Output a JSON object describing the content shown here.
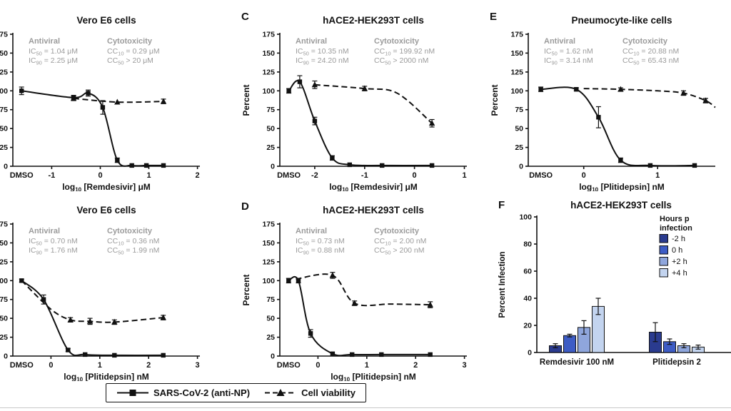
{
  "figure": {
    "bottom_legend": {
      "items": [
        {
          "label": "SARS-CoV-2 (anti-NP)",
          "marker": "square",
          "line": "solid"
        },
        {
          "label": "Cell viability",
          "marker": "triangle",
          "line": "dashed"
        }
      ]
    },
    "colors": {
      "curve": "#111111",
      "annotation_gray": "#9b9b9b",
      "bottom_rule": "#c9c9c9"
    }
  },
  "chart_data": [
    {
      "id": "panelA",
      "type": "line",
      "panel_label": "",
      "title": "Vero E6 cells",
      "xlabel": {
        "pre": "log",
        "sub": "10",
        "post": " [Remdesivir] μM"
      },
      "ylabel": "Percent",
      "ylim": [
        0,
        175
      ],
      "yticks": [
        0,
        25,
        50,
        75,
        100,
        125,
        150,
        175
      ],
      "xticks": [
        -1,
        0,
        1,
        2
      ],
      "xlim": [
        -1.8,
        2.05
      ],
      "dmso_x": -1.62,
      "dmso_label": "DMSO",
      "annotations": {
        "antiviral": {
          "header": "Antiviral",
          "lines": [
            {
              "pre": "IC",
              "sub": "50",
              "post": " = 1.04 μM"
            },
            {
              "pre": "IC",
              "sub": "90",
              "post": " = 2.25 μM"
            }
          ]
        },
        "cytotoxicity": {
          "header": "Cytotoxicity",
          "lines": [
            {
              "pre": "CC",
              "sub": "10",
              "post": " = 0.29 μM"
            },
            {
              "pre": "CC",
              "sub": "50",
              "post": " > 20 μM"
            }
          ]
        }
      },
      "series": [
        {
          "name": "SARS-CoV-2 (anti-NP)",
          "style": "solid",
          "marker": "square",
          "x": [
            -1.62,
            -0.55,
            -0.25,
            0.05,
            0.35,
            0.65,
            0.95,
            1.3
          ],
          "y": [
            100,
            91,
            97,
            78,
            8,
            1,
            1,
            1
          ],
          "err": [
            5,
            3,
            4,
            9,
            3,
            0,
            0,
            0
          ]
        },
        {
          "name": "Cell viability",
          "style": "dashed",
          "marker": "triangle",
          "x": [
            -0.55,
            0.35,
            1.3
          ],
          "y": [
            90,
            85,
            86
          ],
          "err": [
            3,
            0,
            3
          ]
        }
      ]
    },
    {
      "id": "panelC",
      "type": "line",
      "panel_label": "C",
      "title": "hACE2-HEK293T cells",
      "xlabel": {
        "pre": "log",
        "sub": "10",
        "post": " [Remdesivir] μM"
      },
      "ylabel": "Percent",
      "ylim": [
        0,
        175
      ],
      "yticks": [
        0,
        25,
        50,
        75,
        100,
        125,
        150,
        175
      ],
      "xticks": [
        -2,
        -1,
        0,
        1
      ],
      "xlim": [
        -2.7,
        1.05
      ],
      "dmso_x": -2.52,
      "dmso_label": "DMSO",
      "annotations": {
        "antiviral": {
          "header": "Antiviral",
          "lines": [
            {
              "pre": "IC",
              "sub": "50",
              "post": " = 10.35 nM"
            },
            {
              "pre": "IC",
              "sub": "90",
              "post": " = 24.20 nM"
            }
          ]
        },
        "cytotoxicity": {
          "header": "Cytotoxicity",
          "lines": [
            {
              "pre": "CC",
              "sub": "10",
              "post": " = 199.92 nM"
            },
            {
              "pre": "CC",
              "sub": "50",
              "post": " > 2000 nM"
            }
          ]
        }
      },
      "series": [
        {
          "name": "SARS-CoV-2 (anti-NP)",
          "style": "solid",
          "marker": "square",
          "x": [
            -2.52,
            -2.3,
            -2.0,
            -1.65,
            -1.3,
            -0.65,
            0.35
          ],
          "y": [
            100,
            112,
            60,
            11,
            2,
            1,
            1
          ],
          "err": [
            3,
            8,
            5,
            3,
            0,
            0,
            0
          ]
        },
        {
          "name": "Cell viability",
          "style": "dashed",
          "marker": "triangle",
          "x": [
            -2.0,
            -1.0,
            -0.35,
            0.35
          ],
          "y": [
            108,
            103,
            97,
            57
          ],
          "err": [
            5,
            3,
            0,
            5
          ],
          "m": [
            1,
            1,
            0,
            1
          ]
        }
      ]
    },
    {
      "id": "panelE",
      "type": "line",
      "panel_label": "E",
      "title": "Pneumocyte-like cells",
      "xlabel": {
        "pre": "log",
        "sub": "10",
        "post": " [Plitidepsin] nM"
      },
      "ylabel": "Percent",
      "ylim": [
        0,
        175
      ],
      "yticks": [
        0,
        25,
        50,
        75,
        100,
        125,
        150,
        175
      ],
      "xticks": [
        0,
        1
      ],
      "xlim": [
        -0.75,
        1.78
      ],
      "dmso_x": -0.58,
      "dmso_label": "DMSO",
      "annotations": {
        "antiviral": {
          "header": "Antiviral",
          "lines": [
            {
              "pre": "IC",
              "sub": "50",
              "post": " = 1.62 nM"
            },
            {
              "pre": "IC",
              "sub": "90",
              "post": " = 3.14 nM"
            }
          ]
        },
        "cytotoxicity": {
          "header": "Cytotoxicity",
          "lines": [
            {
              "pre": "CC",
              "sub": "10",
              "post": " = 20.88 nM"
            },
            {
              "pre": "CC",
              "sub": "50",
              "post": " = 65.43 nM"
            }
          ]
        }
      },
      "series": [
        {
          "name": "SARS-CoV-2 (anti-NP)",
          "style": "solid",
          "marker": "square",
          "x": [
            -0.58,
            -0.1,
            0.2,
            0.5,
            0.9,
            1.5
          ],
          "y": [
            102,
            102,
            65,
            8,
            1,
            1
          ],
          "err": [
            3,
            2,
            14,
            3,
            0,
            0
          ]
        },
        {
          "name": "Cell viability",
          "style": "dashed",
          "marker": "triangle",
          "x": [
            0.0,
            0.5,
            1.0,
            1.35,
            1.65,
            1.78
          ],
          "y": [
            103,
            102,
            100,
            97,
            87,
            78
          ],
          "err": [
            0,
            2,
            0,
            3,
            3,
            0
          ],
          "m": [
            0,
            1,
            0,
            1,
            1,
            0
          ]
        }
      ]
    },
    {
      "id": "panelB",
      "type": "line",
      "panel_label": "",
      "title": "Vero E6 cells",
      "xlabel": {
        "pre": "log",
        "sub": "10",
        "post": " [Plitidepsin] nM"
      },
      "ylabel": "Percent",
      "ylim": [
        0,
        175
      ],
      "yticks": [
        0,
        25,
        50,
        75,
        100,
        125,
        150,
        175
      ],
      "xticks": [
        0,
        1,
        2,
        3
      ],
      "xlim": [
        -0.78,
        3.05
      ],
      "dmso_x": -0.6,
      "dmso_label": "DMSO",
      "annotations": {
        "antiviral": {
          "header": "Antiviral",
          "lines": [
            {
              "pre": "IC",
              "sub": "50",
              "post": " = 0.70 nM"
            },
            {
              "pre": "IC",
              "sub": "90",
              "post": " = 1.76 nM"
            }
          ]
        },
        "cytotoxicity": {
          "header": "Cytotoxicity",
          "lines": [
            {
              "pre": "CC",
              "sub": "10",
              "post": " = 0.36 nM"
            },
            {
              "pre": "CC",
              "sub": "50",
              "post": " = 1.99 nM"
            }
          ]
        }
      },
      "series": [
        {
          "name": "SARS-CoV-2 (anti-NP)",
          "style": "solid",
          "marker": "square",
          "x": [
            -0.6,
            -0.15,
            0.35,
            0.7,
            1.3,
            2.3
          ],
          "y": [
            100,
            75,
            8,
            2,
            1,
            1
          ],
          "err": [
            2,
            6,
            2,
            0,
            0,
            0
          ]
        },
        {
          "name": "Cell viability",
          "style": "dashed",
          "marker": "triangle",
          "x": [
            -0.6,
            0.0,
            0.4,
            0.8,
            1.3,
            2.3
          ],
          "y": [
            100,
            62,
            48,
            46,
            45,
            51
          ],
          "err": [
            0,
            0,
            3,
            4,
            3,
            3
          ],
          "m": [
            0,
            0,
            1,
            1,
            1,
            1
          ]
        }
      ]
    },
    {
      "id": "panelD",
      "type": "line",
      "panel_label": "D",
      "title": "hACE2-HEK293T cells",
      "xlabel": {
        "pre": "log",
        "sub": "10",
        "post": " [Plitidepsin] nM"
      },
      "ylabel": "Percent",
      "ylim": [
        0,
        175
      ],
      "yticks": [
        0,
        25,
        50,
        75,
        100,
        125,
        150,
        175
      ],
      "xticks": [
        0,
        1,
        2,
        3
      ],
      "xlim": [
        -0.78,
        3.05
      ],
      "dmso_x": -0.6,
      "dmso_label": "DMSO",
      "annotations": {
        "antiviral": {
          "header": "Antiviral",
          "lines": [
            {
              "pre": "IC",
              "sub": "50",
              "post": " = 0.73 nM"
            },
            {
              "pre": "IC",
              "sub": "90",
              "post": " = 0.88 nM"
            }
          ]
        },
        "cytotoxicity": {
          "header": "Cytotoxicity",
          "lines": [
            {
              "pre": "CC",
              "sub": "10",
              "post": " = 2.00 nM"
            },
            {
              "pre": "CC",
              "sub": "50",
              "post": " > 200 nM"
            }
          ]
        }
      },
      "series": [
        {
          "name": "SARS-CoV-2 (anti-NP)",
          "style": "solid",
          "marker": "square",
          "x": [
            -0.6,
            -0.4,
            -0.15,
            0.3,
            0.7,
            1.3,
            2.3
          ],
          "y": [
            100,
            100,
            30,
            3,
            2,
            2,
            2
          ],
          "err": [
            3,
            3,
            5,
            0,
            0,
            0,
            0
          ]
        },
        {
          "name": "Cell viability",
          "style": "dashed",
          "marker": "triangle",
          "x": [
            -0.45,
            0.3,
            0.75,
            1.5,
            2.3
          ],
          "y": [
            102,
            107,
            70,
            69,
            68
          ],
          "err": [
            0,
            4,
            3,
            0,
            4
          ],
          "m": [
            0,
            1,
            1,
            0,
            1
          ]
        }
      ]
    },
    {
      "id": "panelF",
      "type": "bar",
      "panel_label": "F",
      "title": "hACE2-HEK293T cells",
      "ylabel": "Percent Infection",
      "ylim": [
        0,
        100
      ],
      "yticks": [
        0,
        20,
        40,
        60,
        80,
        100
      ],
      "categories": [
        "Remdesivir 100 nM",
        "Plitidepsin 2"
      ],
      "legend": {
        "title_lines": [
          "Hours p",
          "infection"
        ],
        "entries": [
          {
            "label": "-2 h",
            "color": "#2a3b8f"
          },
          {
            "label": "0 h",
            "color": "#3d5cc5"
          },
          {
            "label": "+2 h",
            "color": "#8fa6dc"
          },
          {
            "label": "+4 h",
            "color": "#c3d4ef"
          }
        ]
      },
      "series": [
        {
          "name": "-2 h",
          "color": "#2a3b8f",
          "values": [
            5,
            15
          ],
          "err": [
            1.5,
            7
          ]
        },
        {
          "name": "0 h",
          "color": "#3d5cc5",
          "values": [
            12.5,
            8
          ],
          "err": [
            1,
            2
          ]
        },
        {
          "name": "+2 h",
          "color": "#8fa6dc",
          "values": [
            18.5,
            5
          ],
          "err": [
            5,
            1.5
          ]
        },
        {
          "name": "+4 h",
          "color": "#c3d4ef",
          "values": [
            34,
            4
          ],
          "err": [
            6,
            1.5
          ]
        }
      ]
    }
  ]
}
